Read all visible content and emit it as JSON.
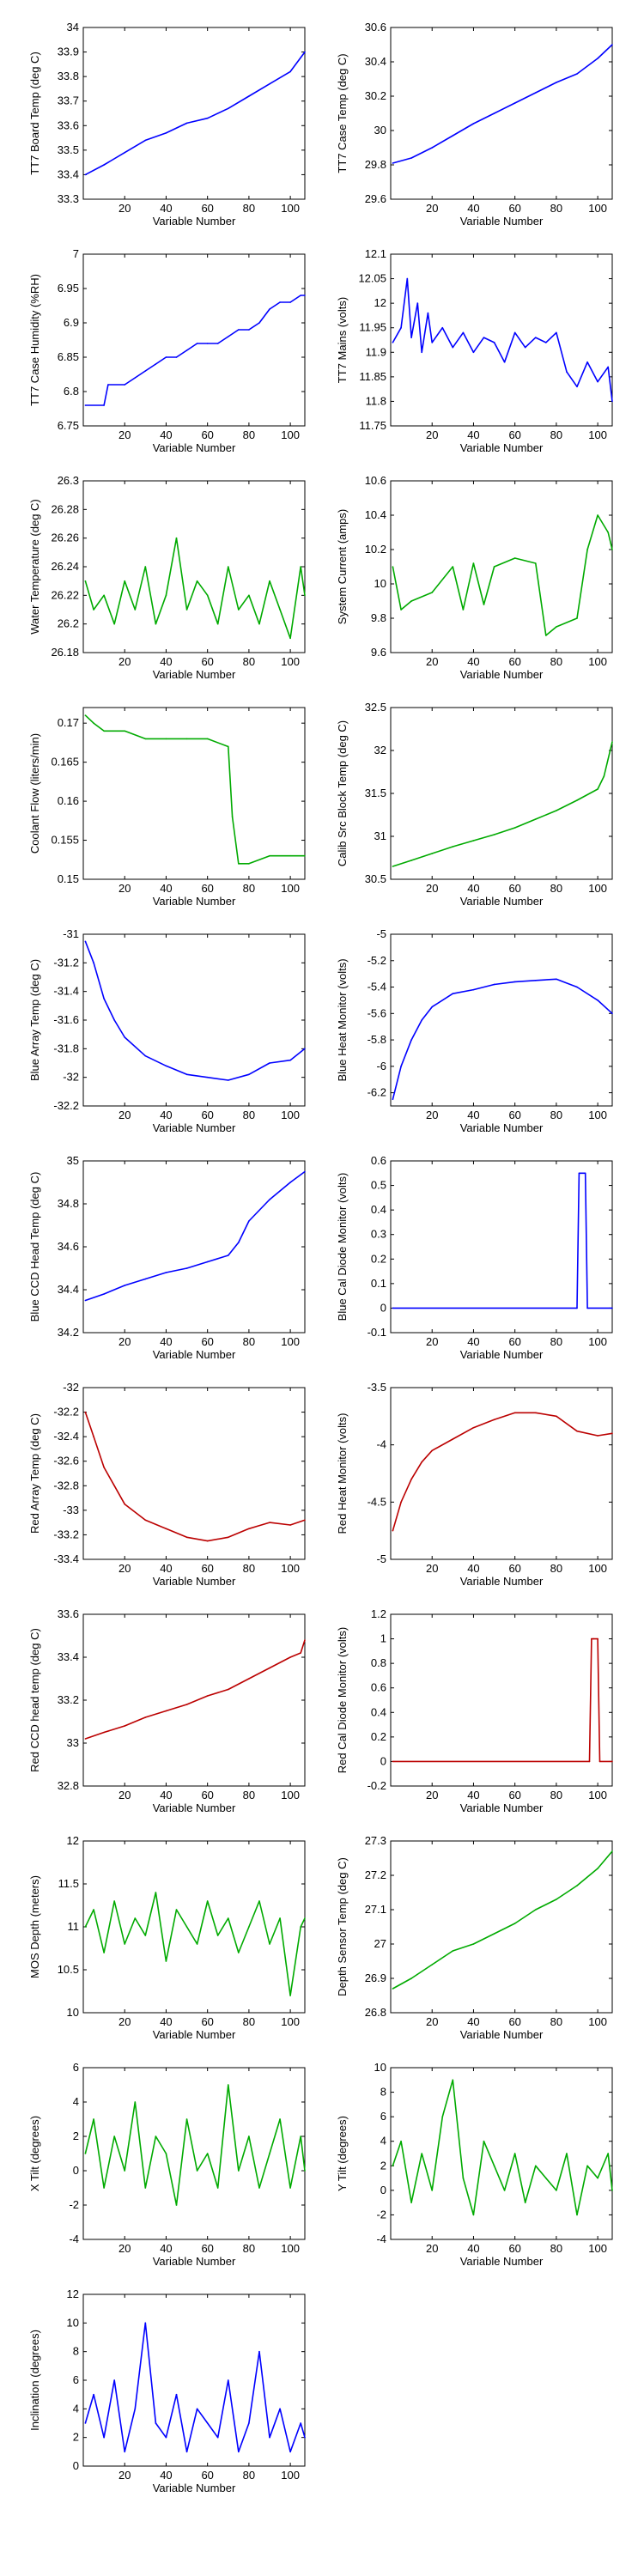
{
  "chart_data": [
    {
      "type": "line",
      "color": "#0000ff",
      "ylabel": "TT7 Board Temp (deg C)",
      "xlabel": "Variable Number",
      "xlim": [
        0,
        107
      ],
      "ylim": [
        33.3,
        34
      ],
      "yticks": [
        "34",
        "33.9",
        "33.8",
        "33.7",
        "33.6",
        "33.5",
        "33.4",
        "33.3"
      ],
      "xticks": [
        "20",
        "40",
        "60",
        "80",
        "100"
      ],
      "x": [
        1,
        10,
        20,
        30,
        40,
        50,
        60,
        70,
        80,
        90,
        100,
        107
      ],
      "y": [
        33.4,
        33.44,
        33.49,
        33.54,
        33.57,
        33.61,
        33.63,
        33.67,
        33.72,
        33.77,
        33.82,
        33.9
      ]
    },
    {
      "type": "line",
      "color": "#0000ff",
      "ylabel": "TT7 Case Temp (deg C)",
      "xlabel": "Variable Number",
      "xlim": [
        0,
        107
      ],
      "ylim": [
        29.6,
        30.6
      ],
      "yticks": [
        "30.6",
        "30.4",
        "30.2",
        "30",
        "29.8",
        "29.6"
      ],
      "xticks": [
        "20",
        "40",
        "60",
        "80",
        "100"
      ],
      "x": [
        1,
        10,
        20,
        30,
        40,
        50,
        60,
        70,
        80,
        90,
        100,
        107
      ],
      "y": [
        29.81,
        29.84,
        29.9,
        29.97,
        30.04,
        30.1,
        30.16,
        30.22,
        30.28,
        30.33,
        30.42,
        30.5
      ]
    },
    {
      "type": "line",
      "color": "#0000ff",
      "ylabel": "TT7 Case Humidity (%RH)",
      "xlabel": "Variable Number",
      "xlim": [
        0,
        107
      ],
      "ylim": [
        6.75,
        7
      ],
      "yticks": [
        "7",
        "6.95",
        "6.9",
        "6.85",
        "6.8",
        "6.75"
      ],
      "xticks": [
        "20",
        "40",
        "60",
        "80",
        "100"
      ],
      "x": [
        1,
        10,
        12,
        20,
        25,
        30,
        35,
        40,
        45,
        50,
        55,
        60,
        65,
        70,
        75,
        80,
        85,
        90,
        95,
        100,
        105,
        107
      ],
      "y": [
        6.78,
        6.78,
        6.81,
        6.81,
        6.82,
        6.83,
        6.84,
        6.85,
        6.85,
        6.86,
        6.87,
        6.87,
        6.87,
        6.88,
        6.89,
        6.89,
        6.9,
        6.92,
        6.93,
        6.93,
        6.94,
        6.94
      ]
    },
    {
      "type": "line",
      "color": "#0000ff",
      "ylabel": "TT7 Mains  (volts)",
      "xlabel": "Variable Number",
      "xlim": [
        0,
        107
      ],
      "ylim": [
        11.75,
        12.1
      ],
      "yticks": [
        "12.1",
        "12.05",
        "12",
        "11.95",
        "11.9",
        "11.85",
        "11.8",
        "11.75"
      ],
      "xticks": [
        "20",
        "40",
        "60",
        "80",
        "100"
      ],
      "x": [
        1,
        5,
        8,
        10,
        13,
        15,
        18,
        20,
        25,
        30,
        35,
        40,
        45,
        50,
        55,
        60,
        65,
        70,
        75,
        80,
        85,
        90,
        95,
        100,
        105,
        107
      ],
      "y": [
        11.92,
        11.95,
        12.05,
        11.93,
        12.0,
        11.9,
        11.98,
        11.92,
        11.95,
        11.91,
        11.94,
        11.9,
        11.93,
        11.92,
        11.88,
        11.94,
        11.91,
        11.93,
        11.92,
        11.94,
        11.86,
        11.83,
        11.88,
        11.84,
        11.87,
        11.8
      ]
    },
    {
      "type": "line",
      "color": "#00aa00",
      "ylabel": "Water Temperature (deg C)",
      "xlabel": "Variable Number",
      "xlim": [
        0,
        107
      ],
      "ylim": [
        26.18,
        26.3
      ],
      "yticks": [
        "26.3",
        "26.28",
        "26.26",
        "26.24",
        "26.22",
        "26.2",
        "26.18"
      ],
      "xticks": [
        "20",
        "40",
        "60",
        "80",
        "100"
      ],
      "x": [
        1,
        5,
        10,
        15,
        20,
        25,
        30,
        35,
        40,
        45,
        50,
        55,
        60,
        65,
        70,
        75,
        80,
        85,
        90,
        95,
        100,
        105,
        107
      ],
      "y": [
        26.23,
        26.21,
        26.22,
        26.2,
        26.23,
        26.21,
        26.24,
        26.2,
        26.22,
        26.26,
        26.21,
        26.23,
        26.22,
        26.2,
        26.24,
        26.21,
        26.22,
        26.2,
        26.23,
        26.21,
        26.19,
        26.24,
        26.22
      ]
    },
    {
      "type": "line",
      "color": "#00aa00",
      "ylabel": "System Current (amps)",
      "xlabel": "Variable Number",
      "xlim": [
        0,
        107
      ],
      "ylim": [
        9.6,
        10.6
      ],
      "yticks": [
        "10.6",
        "10.4",
        "10.2",
        "10",
        "9.8",
        "9.6"
      ],
      "xticks": [
        "20",
        "40",
        "60",
        "80",
        "100"
      ],
      "x": [
        1,
        5,
        10,
        20,
        30,
        35,
        40,
        45,
        50,
        60,
        70,
        75,
        80,
        90,
        95,
        100,
        105,
        107
      ],
      "y": [
        10.1,
        9.85,
        9.9,
        9.95,
        10.1,
        9.85,
        10.12,
        9.88,
        10.1,
        10.15,
        10.12,
        9.7,
        9.75,
        9.8,
        10.2,
        10.4,
        10.3,
        10.2
      ]
    },
    {
      "type": "line",
      "color": "#00aa00",
      "ylabel": "Coolant Flow (liters/min)",
      "xlabel": "Variable Number",
      "xlim": [
        0,
        107
      ],
      "ylim": [
        0.15,
        0.172
      ],
      "yticks": [
        "0.17",
        "0.165",
        "0.16",
        "0.155",
        "0.15"
      ],
      "xticks": [
        "20",
        "40",
        "60",
        "80",
        "100"
      ],
      "x": [
        1,
        5,
        10,
        20,
        30,
        40,
        50,
        60,
        70,
        72,
        75,
        80,
        90,
        100,
        107
      ],
      "y": [
        0.171,
        0.17,
        0.169,
        0.169,
        0.168,
        0.168,
        0.168,
        0.168,
        0.167,
        0.158,
        0.152,
        0.152,
        0.153,
        0.153,
        0.153
      ]
    },
    {
      "type": "line",
      "color": "#00aa00",
      "ylabel": "Calib Src Block Temp (deg C)",
      "xlabel": "Variable Number",
      "xlim": [
        0,
        107
      ],
      "ylim": [
        30.5,
        32.5
      ],
      "yticks": [
        "32.5",
        "32",
        "31.5",
        "31",
        "30.5"
      ],
      "xticks": [
        "20",
        "40",
        "60",
        "80",
        "100"
      ],
      "x": [
        1,
        10,
        20,
        30,
        40,
        50,
        60,
        70,
        80,
        90,
        100,
        103,
        107
      ],
      "y": [
        30.65,
        30.72,
        30.8,
        30.88,
        30.95,
        31.02,
        31.1,
        31.2,
        31.3,
        31.42,
        31.55,
        31.7,
        32.1
      ]
    },
    {
      "type": "line",
      "color": "#0000ff",
      "ylabel": "Blue Array Temp (deg C)",
      "xlabel": "Variable Number",
      "xlim": [
        0,
        107
      ],
      "ylim": [
        -32.2,
        -31
      ],
      "yticks": [
        "-31",
        "-31.2",
        "-31.4",
        "-31.6",
        "-31.8",
        "-32",
        "-32.2"
      ],
      "xticks": [
        "20",
        "40",
        "60",
        "80",
        "100"
      ],
      "x": [
        1,
        5,
        10,
        15,
        20,
        30,
        40,
        50,
        60,
        70,
        80,
        90,
        100,
        107
      ],
      "y": [
        -31.05,
        -31.2,
        -31.45,
        -31.6,
        -31.72,
        -31.85,
        -31.92,
        -31.98,
        -32.0,
        -32.02,
        -31.98,
        -31.9,
        -31.88,
        -31.8
      ]
    },
    {
      "type": "line",
      "color": "#0000ff",
      "ylabel": "Blue Heat Monitor (volts)",
      "xlabel": "Variable Number",
      "xlim": [
        0,
        107
      ],
      "ylim": [
        -6.3,
        -5
      ],
      "yticks": [
        "-5",
        "-5.2",
        "-5.4",
        "-5.6",
        "-5.8",
        "-6",
        "-6.2"
      ],
      "xticks": [
        "20",
        "40",
        "60",
        "80",
        "100"
      ],
      "x": [
        1,
        5,
        10,
        15,
        20,
        30,
        40,
        50,
        60,
        70,
        80,
        90,
        100,
        107
      ],
      "y": [
        -6.25,
        -6.0,
        -5.8,
        -5.65,
        -5.55,
        -5.45,
        -5.42,
        -5.38,
        -5.36,
        -5.35,
        -5.34,
        -5.4,
        -5.5,
        -5.6
      ]
    },
    {
      "type": "line",
      "color": "#0000ff",
      "ylabel": "Blue CCD Head Temp (deg C)",
      "xlabel": "Variable Number",
      "xlim": [
        0,
        107
      ],
      "ylim": [
        34.2,
        35
      ],
      "yticks": [
        "35",
        "34.8",
        "34.6",
        "34.4",
        "34.2"
      ],
      "xticks": [
        "20",
        "40",
        "60",
        "80",
        "100"
      ],
      "x": [
        1,
        10,
        20,
        30,
        40,
        50,
        60,
        70,
        75,
        80,
        90,
        100,
        107
      ],
      "y": [
        34.35,
        34.38,
        34.42,
        34.45,
        34.48,
        34.5,
        34.53,
        34.56,
        34.62,
        34.72,
        34.82,
        34.9,
        34.95
      ]
    },
    {
      "type": "line",
      "color": "#0000ff",
      "ylabel": "Blue Cal Diode Monitor (volts)",
      "xlabel": "Variable Number",
      "xlim": [
        0,
        107
      ],
      "ylim": [
        -0.1,
        0.6
      ],
      "yticks": [
        "0.6",
        "0.5",
        "0.4",
        "0.3",
        "0.2",
        "0.1",
        "0",
        "-0.1"
      ],
      "xticks": [
        "20",
        "40",
        "60",
        "80",
        "100"
      ],
      "x": [
        1,
        90,
        91,
        92,
        94,
        95,
        107
      ],
      "y": [
        0,
        0,
        0.55,
        0.55,
        0.55,
        0,
        0
      ]
    },
    {
      "type": "line",
      "color": "#bb0000",
      "ylabel": "Red Array Temp (deg C)",
      "xlabel": "Variable Number",
      "xlim": [
        0,
        107
      ],
      "ylim": [
        -33.4,
        -32
      ],
      "yticks": [
        "-32",
        "-32.2",
        "-32.4",
        "-32.6",
        "-32.8",
        "-33",
        "-33.2",
        "-33.4"
      ],
      "xticks": [
        "20",
        "40",
        "60",
        "80",
        "100"
      ],
      "x": [
        1,
        5,
        10,
        15,
        20,
        30,
        40,
        50,
        60,
        70,
        80,
        90,
        100,
        107
      ],
      "y": [
        -32.2,
        -32.4,
        -32.65,
        -32.8,
        -32.95,
        -33.08,
        -33.15,
        -33.22,
        -33.25,
        -33.22,
        -33.15,
        -33.1,
        -33.12,
        -33.08
      ]
    },
    {
      "type": "line",
      "color": "#bb0000",
      "ylabel": "Red Heat Monitor (volts)",
      "xlabel": "Variable Number",
      "xlim": [
        0,
        107
      ],
      "ylim": [
        -5,
        -3.5
      ],
      "yticks": [
        "-3.5",
        "-4",
        "-4.5",
        "-5"
      ],
      "xticks": [
        "20",
        "40",
        "60",
        "80",
        "100"
      ],
      "x": [
        1,
        5,
        10,
        15,
        20,
        30,
        40,
        50,
        60,
        70,
        80,
        90,
        100,
        107
      ],
      "y": [
        -4.75,
        -4.5,
        -4.3,
        -4.15,
        -4.05,
        -3.95,
        -3.85,
        -3.78,
        -3.72,
        -3.72,
        -3.75,
        -3.88,
        -3.92,
        -3.9
      ]
    },
    {
      "type": "line",
      "color": "#bb0000",
      "ylabel": "Red CCD head temp (deg C)",
      "xlabel": "Variable Number",
      "xlim": [
        0,
        107
      ],
      "ylim": [
        32.8,
        33.6
      ],
      "yticks": [
        "33.6",
        "33.4",
        "33.2",
        "33",
        "32.8"
      ],
      "xticks": [
        "20",
        "40",
        "60",
        "80",
        "100"
      ],
      "x": [
        1,
        10,
        20,
        30,
        40,
        50,
        60,
        70,
        80,
        90,
        100,
        105,
        107
      ],
      "y": [
        33.02,
        33.05,
        33.08,
        33.12,
        33.15,
        33.18,
        33.22,
        33.25,
        33.3,
        33.35,
        33.4,
        33.42,
        33.48
      ]
    },
    {
      "type": "line",
      "color": "#bb0000",
      "ylabel": "Red Cal Diode Monitor (volts)",
      "xlabel": "Variable Number",
      "xlim": [
        0,
        107
      ],
      "ylim": [
        -0.2,
        1.2
      ],
      "yticks": [
        "1.2",
        "1",
        "0.8",
        "0.6",
        "0.4",
        "0.2",
        "0",
        "-0.2"
      ],
      "xticks": [
        "20",
        "40",
        "60",
        "80",
        "100"
      ],
      "x": [
        1,
        96,
        97,
        98,
        100,
        101,
        107
      ],
      "y": [
        0,
        0,
        1.0,
        1.0,
        1.0,
        0,
        0
      ]
    },
    {
      "type": "line",
      "color": "#00aa00",
      "ylabel": "MOS Depth  (meters)",
      "xlabel": "Variable Number",
      "xlim": [
        0,
        107
      ],
      "ylim": [
        10,
        12
      ],
      "yticks": [
        "12",
        "11.5",
        "11",
        "10.5",
        "10"
      ],
      "xticks": [
        "20",
        "40",
        "60",
        "80",
        "100"
      ],
      "x": [
        1,
        5,
        10,
        15,
        20,
        25,
        30,
        35,
        40,
        45,
        50,
        55,
        60,
        65,
        70,
        75,
        80,
        85,
        90,
        95,
        100,
        105,
        107
      ],
      "y": [
        11.0,
        11.2,
        10.7,
        11.3,
        10.8,
        11.1,
        10.9,
        11.4,
        10.6,
        11.2,
        11.0,
        10.8,
        11.3,
        10.9,
        11.1,
        10.7,
        11.0,
        11.3,
        10.8,
        11.1,
        10.2,
        11.0,
        11.1
      ]
    },
    {
      "type": "line",
      "color": "#00aa00",
      "ylabel": "Depth Sensor Temp (deg C)",
      "xlabel": "Variable Number",
      "xlim": [
        0,
        107
      ],
      "ylim": [
        26.8,
        27.3
      ],
      "yticks": [
        "27.3",
        "27.2",
        "27.1",
        "27",
        "26.9",
        "26.8"
      ],
      "xticks": [
        "20",
        "40",
        "60",
        "80",
        "100"
      ],
      "x": [
        1,
        10,
        20,
        30,
        40,
        50,
        60,
        70,
        80,
        90,
        100,
        107
      ],
      "y": [
        26.87,
        26.9,
        26.94,
        26.98,
        27.0,
        27.03,
        27.06,
        27.1,
        27.13,
        27.17,
        27.22,
        27.27
      ]
    },
    {
      "type": "line",
      "color": "#00aa00",
      "ylabel": "X Tilt  (degrees)",
      "xlabel": "Variable Number",
      "xlim": [
        0,
        107
      ],
      "ylim": [
        -4,
        6
      ],
      "yticks": [
        "6",
        "4",
        "2",
        "0",
        "-2",
        "-4"
      ],
      "xticks": [
        "20",
        "40",
        "60",
        "80",
        "100"
      ],
      "x": [
        1,
        5,
        10,
        15,
        20,
        25,
        30,
        35,
        40,
        45,
        50,
        55,
        60,
        65,
        70,
        75,
        80,
        85,
        90,
        95,
        100,
        105,
        107
      ],
      "y": [
        1,
        3,
        -1,
        2,
        0,
        4,
        -1,
        2,
        1,
        -2,
        3,
        0,
        1,
        -1,
        5,
        0,
        2,
        -1,
        1,
        3,
        -1,
        2,
        0
      ]
    },
    {
      "type": "line",
      "color": "#00aa00",
      "ylabel": "Y Tilt  (degrees)",
      "xlabel": "Variable Number",
      "xlim": [
        0,
        107
      ],
      "ylim": [
        -4,
        10
      ],
      "yticks": [
        "10",
        "8",
        "6",
        "4",
        "2",
        "0",
        "-2",
        "-4"
      ],
      "xticks": [
        "20",
        "40",
        "60",
        "80",
        "100"
      ],
      "x": [
        1,
        5,
        10,
        15,
        20,
        25,
        30,
        35,
        40,
        45,
        50,
        55,
        60,
        65,
        70,
        75,
        80,
        85,
        90,
        95,
        100,
        105,
        107
      ],
      "y": [
        2,
        4,
        -1,
        3,
        0,
        6,
        9,
        1,
        -2,
        4,
        2,
        0,
        3,
        -1,
        2,
        1,
        0,
        3,
        -2,
        2,
        1,
        3,
        0
      ]
    },
    {
      "type": "line",
      "color": "#0000ff",
      "ylabel": "Inclination  (degrees)",
      "xlabel": "Variable Number",
      "xlim": [
        0,
        107
      ],
      "ylim": [
        0,
        12
      ],
      "yticks": [
        "12",
        "10",
        "8",
        "6",
        "4",
        "2",
        "0"
      ],
      "xticks": [
        "20",
        "40",
        "60",
        "80",
        "100"
      ],
      "x": [
        1,
        5,
        10,
        15,
        20,
        25,
        30,
        35,
        40,
        45,
        50,
        55,
        60,
        65,
        70,
        75,
        80,
        85,
        90,
        95,
        100,
        105,
        107
      ],
      "y": [
        3,
        5,
        2,
        6,
        1,
        4,
        10,
        3,
        2,
        5,
        1,
        4,
        3,
        2,
        6,
        1,
        3,
        8,
        2,
        4,
        1,
        3,
        2
      ]
    }
  ]
}
